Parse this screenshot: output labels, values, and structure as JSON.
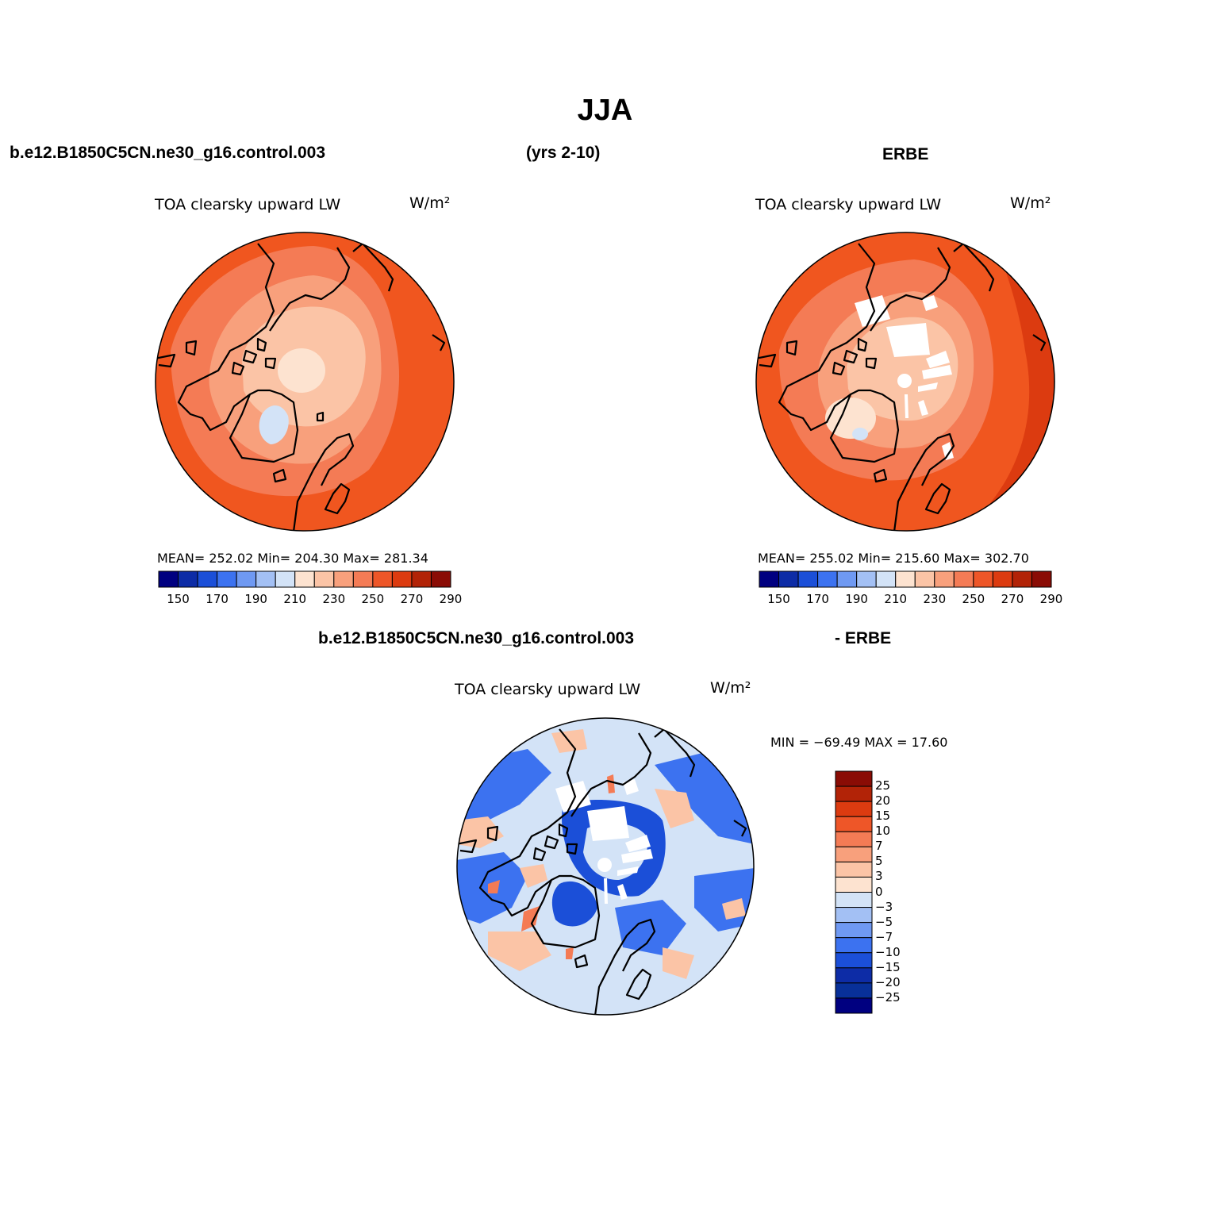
{
  "main_title": "JJA",
  "header": {
    "case_name": "b.e12.B1850C5CN.ne30_g16.control.003",
    "years": "(yrs 2-10)",
    "obs_name": "ERBE"
  },
  "diff_header": {
    "case_name": "b.e12.B1850C5CN.ne30_g16.control.003",
    "obs_name": "- ERBE"
  },
  "panels": {
    "model": {
      "title": "TOA clearsky upward LW",
      "units": "W/m²",
      "stats": "MEAN= 252.02   Min= 204.30   Max= 281.34"
    },
    "obs": {
      "title": "TOA clearsky upward LW",
      "units": "W/m²",
      "stats": "MEAN= 255.02   Min= 215.60   Max= 302.70"
    },
    "diff": {
      "title": "TOA clearsky upward LW",
      "units": "W/m²",
      "stats": "MIN = −69.49  MAX =   17.60"
    }
  },
  "colorbar_main": {
    "colors": [
      "#000080",
      "#0d2ca6",
      "#1b4fd8",
      "#3c72f0",
      "#6f99f2",
      "#a3c0f4",
      "#d3e3f7",
      "#fde3d0",
      "#fbc4a6",
      "#f8a07c",
      "#f47b55",
      "#ee5628",
      "#dc3b10",
      "#b22307",
      "#8a0c05"
    ],
    "tick_labels": [
      "150",
      "170",
      "190",
      "210",
      "230",
      "250",
      "270",
      "290"
    ]
  },
  "colorbar_diff": {
    "colors": [
      "#8a0c05",
      "#b22307",
      "#dc3b10",
      "#ee5628",
      "#f47b55",
      "#f8a07c",
      "#fbc4a6",
      "#fde3d0",
      "#d3e3f7",
      "#a3c0f4",
      "#6f99f2",
      "#3c72f0",
      "#1b4fd8",
      "#0d2ca6",
      "#083099",
      "#000080"
    ],
    "tick_labels": [
      "25",
      "20",
      "15",
      "10",
      "7",
      "5",
      "3",
      "0",
      "−3",
      "−5",
      "−7",
      "−10",
      "−15",
      "−20",
      "−25"
    ]
  },
  "map_colors": {
    "outer": "#f0561f",
    "mid": "#f47b55",
    "inner": "#f8a07c",
    "pole": "#fbc4a6",
    "pole_light": "#fde3d0",
    "greenland_low": "#d3e3f7",
    "diff_base": "#d3e3f7",
    "diff_blue": "#3c72f0",
    "diff_darkblue": "#1b4fd8",
    "diff_red": "#f47b55",
    "diff_peach": "#fbc4a6",
    "gap": "#ffffff",
    "coast": "#000000"
  }
}
